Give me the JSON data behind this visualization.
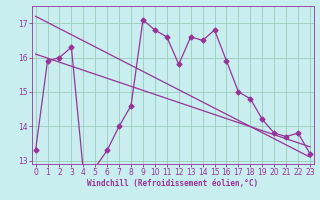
{
  "xlabel": "Windchill (Refroidissement éolien,°C)",
  "x_values": [
    0,
    1,
    2,
    3,
    4,
    5,
    6,
    7,
    8,
    9,
    10,
    11,
    12,
    13,
    14,
    15,
    16,
    17,
    18,
    19,
    20,
    21,
    22,
    23
  ],
  "line1": [
    13.3,
    15.9,
    16.0,
    16.3,
    12.7,
    12.8,
    13.3,
    14.0,
    14.6,
    17.1,
    16.8,
    16.6,
    15.8,
    16.6,
    16.5,
    16.8,
    15.9,
    15.0,
    14.8,
    14.2,
    13.8,
    13.7,
    13.8,
    13.2
  ],
  "line2_start_y": 17.2,
  "line2_end_y": 13.1,
  "line3_start_y": 16.1,
  "line3_end_y": 13.4,
  "ylim_min": 12.9,
  "ylim_max": 17.5,
  "yticks": [
    13,
    14,
    15,
    16,
    17
  ],
  "xticks": [
    0,
    1,
    2,
    3,
    4,
    5,
    6,
    7,
    8,
    9,
    10,
    11,
    12,
    13,
    14,
    15,
    16,
    17,
    18,
    19,
    20,
    21,
    22,
    23
  ],
  "bg_color": "#c8eef0",
  "line_color": "#993399",
  "grid_color": "#99ccbb",
  "font_color": "#993399",
  "marker": "D",
  "marker_size": 2.5,
  "line_width": 0.9,
  "tick_fontsize": 5.5,
  "xlabel_fontsize": 5.5
}
